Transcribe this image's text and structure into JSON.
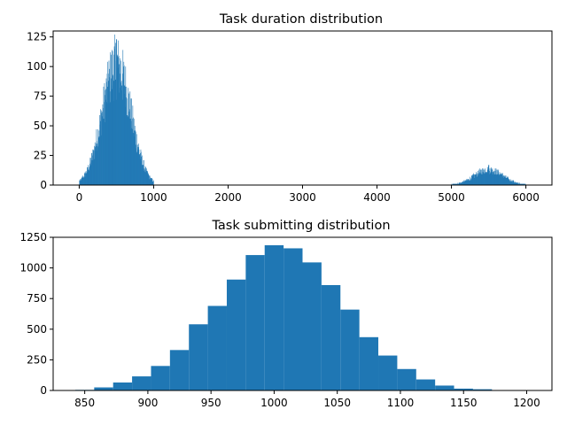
{
  "chart_data": [
    {
      "type": "bar",
      "title": "Task duration distribution",
      "xlabel": "",
      "ylabel": "",
      "xlim": [
        -350,
        6350
      ],
      "ylim": [
        0,
        130
      ],
      "xticks": [
        0,
        1000,
        2000,
        3000,
        4000,
        5000,
        6000
      ],
      "yticks": [
        0,
        25,
        50,
        75,
        100,
        125
      ],
      "grid": false,
      "bar_color": "#1f77b4",
      "bins": [
        {
          "x0": 0,
          "x1": 1000,
          "peak_x": 500,
          "peak_count": 123,
          "typical_peak": 100,
          "shape": "bell"
        },
        {
          "x0": 5000,
          "x1": 6000,
          "peak_x": 5500,
          "peak_count": 17,
          "typical_peak": 13,
          "shape": "bell"
        }
      ]
    },
    {
      "type": "bar",
      "title": "Task submitting distribution",
      "xlabel": "",
      "ylabel": "",
      "xlim": [
        825,
        1220
      ],
      "ylim": [
        0,
        1250
      ],
      "xticks": [
        850,
        900,
        950,
        1000,
        1050,
        1100,
        1150,
        1200
      ],
      "yticks": [
        0,
        250,
        500,
        750,
        1000,
        1250
      ],
      "grid": false,
      "bar_color": "#1f77b4",
      "bin_edges": [
        842.5,
        857.5,
        872.5,
        887.5,
        902.5,
        917.5,
        932.5,
        947.5,
        962.5,
        977.5,
        992.5,
        1007.5,
        1022.5,
        1037.5,
        1052.5,
        1067.5,
        1082.5,
        1097.5,
        1112.5,
        1127.5,
        1142.5,
        1157.5,
        1172.5,
        1187.5,
        1202.5
      ],
      "values": [
        5,
        25,
        65,
        115,
        200,
        330,
        540,
        690,
        905,
        1105,
        1185,
        1160,
        1045,
        860,
        660,
        435,
        285,
        175,
        90,
        40,
        15,
        10,
        3,
        2
      ]
    }
  ]
}
